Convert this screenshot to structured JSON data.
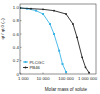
{
  "chart_data": {
    "type": "line",
    "x_label": "Molar mass of solute",
    "y_label": "qt / qt,0 (–)",
    "log": "x",
    "grid": false,
    "legend": "lower left",
    "xlim": [
      1000,
      2000000
    ],
    "xticks": [
      {
        "value": 1000,
        "label": "1 000"
      },
      {
        "value": 10000,
        "label": "10 000"
      },
      {
        "value": 100000,
        "label": "100 000"
      },
      {
        "value": 1000000,
        "label": "1 000 000"
      }
    ],
    "ylim": [
      0,
      1.05
    ],
    "yticks": [
      0,
      0.2,
      0.4,
      0.6,
      0.8,
      {
        "value": 1,
        "label": "1.0"
      }
    ],
    "series": [
      {
        "name": "PLCGC",
        "color": "#3cb4e6",
        "marker": "square",
        "x": [
          1000,
          2000,
          5000,
          10000,
          20000,
          30000,
          50000,
          70000,
          100000
        ],
        "values": [
          0.99,
          0.98,
          0.95,
          0.9,
          0.75,
          0.6,
          0.35,
          0.15,
          0.03
        ]
      },
      {
        "name": "PB46",
        "color": "#222222",
        "marker": "circle",
        "x": [
          1000,
          3000,
          10000,
          30000,
          100000,
          200000,
          300000,
          500000,
          700000,
          1000000
        ],
        "values": [
          0.99,
          0.98,
          0.97,
          0.95,
          0.9,
          0.75,
          0.55,
          0.25,
          0.1,
          0.02
        ]
      }
    ]
  }
}
